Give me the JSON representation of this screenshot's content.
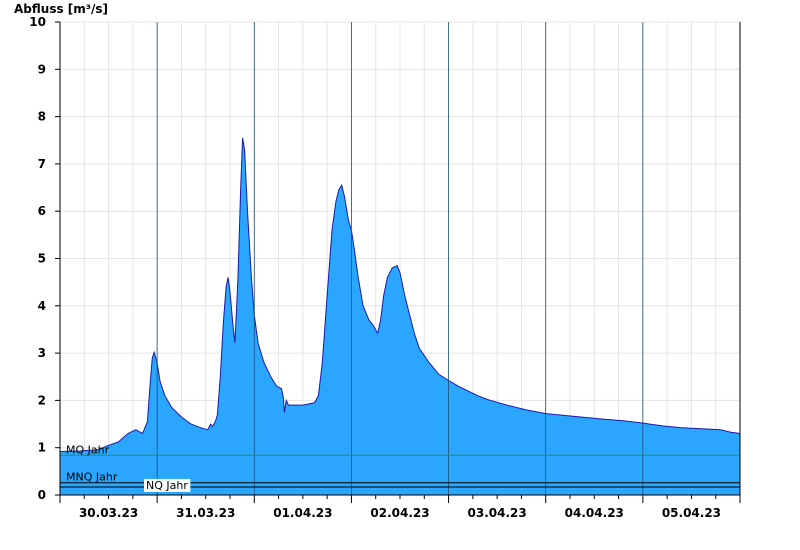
{
  "chart_data": {
    "type": "area",
    "ylabel": "Abfluss [m³/s]",
    "ylim": [
      0,
      10
    ],
    "yticks": [
      "0",
      "1",
      "2",
      "3",
      "4",
      "5",
      "6",
      "7",
      "8",
      "9",
      "10"
    ],
    "xlabels": [
      "30.03.23",
      "31.03.23",
      "01.04.23",
      "02.04.23",
      "03.04.23",
      "04.04.23",
      "05.04.23"
    ],
    "x_range_days": [
      0,
      7
    ],
    "grid": true,
    "colors": {
      "fill": "#2aa6ff",
      "line": "#1a1aa8",
      "grid": "#e4e4e4",
      "day_line": "#1c4f7a",
      "ref_line": "#000000",
      "mq_line": "#2e8b57"
    },
    "series": [
      {
        "name": "",
        "points": [
          [
            0.0,
            0.92
          ],
          [
            0.2,
            0.93
          ],
          [
            0.4,
            0.96
          ],
          [
            0.5,
            1.05
          ],
          [
            0.6,
            1.12
          ],
          [
            0.7,
            1.3
          ],
          [
            0.78,
            1.38
          ],
          [
            0.85,
            1.3
          ],
          [
            0.9,
            1.55
          ],
          [
            0.93,
            2.4
          ],
          [
            0.95,
            2.9
          ],
          [
            0.97,
            3.02
          ],
          [
            1.0,
            2.8
          ],
          [
            1.03,
            2.4
          ],
          [
            1.08,
            2.1
          ],
          [
            1.15,
            1.85
          ],
          [
            1.25,
            1.65
          ],
          [
            1.35,
            1.5
          ],
          [
            1.45,
            1.42
          ],
          [
            1.52,
            1.38
          ],
          [
            1.55,
            1.5
          ],
          [
            1.57,
            1.45
          ],
          [
            1.6,
            1.55
          ],
          [
            1.62,
            1.7
          ],
          [
            1.65,
            2.5
          ],
          [
            1.68,
            3.6
          ],
          [
            1.71,
            4.4
          ],
          [
            1.73,
            4.6
          ],
          [
            1.75,
            4.3
          ],
          [
            1.78,
            3.6
          ],
          [
            1.8,
            3.22
          ],
          [
            1.83,
            4.5
          ],
          [
            1.86,
            6.5
          ],
          [
            1.88,
            7.55
          ],
          [
            1.9,
            7.3
          ],
          [
            1.93,
            6.0
          ],
          [
            1.97,
            4.6
          ],
          [
            2.0,
            3.8
          ],
          [
            2.04,
            3.2
          ],
          [
            2.1,
            2.8
          ],
          [
            2.17,
            2.5
          ],
          [
            2.23,
            2.3
          ],
          [
            2.28,
            2.25
          ],
          [
            2.3,
            2.05
          ],
          [
            2.31,
            1.75
          ],
          [
            2.33,
            2.0
          ],
          [
            2.35,
            1.9
          ],
          [
            2.5,
            1.9
          ],
          [
            2.62,
            1.95
          ],
          [
            2.66,
            2.1
          ],
          [
            2.7,
            2.8
          ],
          [
            2.75,
            4.2
          ],
          [
            2.8,
            5.6
          ],
          [
            2.84,
            6.2
          ],
          [
            2.87,
            6.45
          ],
          [
            2.9,
            6.55
          ],
          [
            2.93,
            6.3
          ],
          [
            2.97,
            5.8
          ],
          [
            3.0,
            5.6
          ],
          [
            3.03,
            5.2
          ],
          [
            3.07,
            4.6
          ],
          [
            3.12,
            4.0
          ],
          [
            3.18,
            3.7
          ],
          [
            3.22,
            3.6
          ],
          [
            3.27,
            3.42
          ],
          [
            3.3,
            3.7
          ],
          [
            3.33,
            4.2
          ],
          [
            3.37,
            4.6
          ],
          [
            3.42,
            4.8
          ],
          [
            3.47,
            4.85
          ],
          [
            3.5,
            4.7
          ],
          [
            3.55,
            4.2
          ],
          [
            3.6,
            3.8
          ],
          [
            3.65,
            3.4
          ],
          [
            3.7,
            3.1
          ],
          [
            3.8,
            2.8
          ],
          [
            3.9,
            2.55
          ],
          [
            4.0,
            2.42
          ],
          [
            4.1,
            2.3
          ],
          [
            4.2,
            2.2
          ],
          [
            4.3,
            2.1
          ],
          [
            4.4,
            2.02
          ],
          [
            4.5,
            1.96
          ],
          [
            4.6,
            1.9
          ],
          [
            4.7,
            1.85
          ],
          [
            4.8,
            1.8
          ],
          [
            5.0,
            1.72
          ],
          [
            5.2,
            1.68
          ],
          [
            5.4,
            1.64
          ],
          [
            5.6,
            1.6
          ],
          [
            5.8,
            1.57
          ],
          [
            6.0,
            1.52
          ],
          [
            6.2,
            1.46
          ],
          [
            6.4,
            1.42
          ],
          [
            6.6,
            1.4
          ],
          [
            6.8,
            1.38
          ],
          [
            6.9,
            1.33
          ],
          [
            7.0,
            1.3
          ]
        ]
      }
    ],
    "ref_lines": [
      {
        "label": "MQ Jahr",
        "value": 0.84,
        "color": "#2e8b57"
      },
      {
        "label": "MNQ Jahr",
        "value": 0.26,
        "color": "#000000"
      },
      {
        "label": "NQ Jahr",
        "value": 0.17,
        "color": "#000000"
      }
    ]
  }
}
